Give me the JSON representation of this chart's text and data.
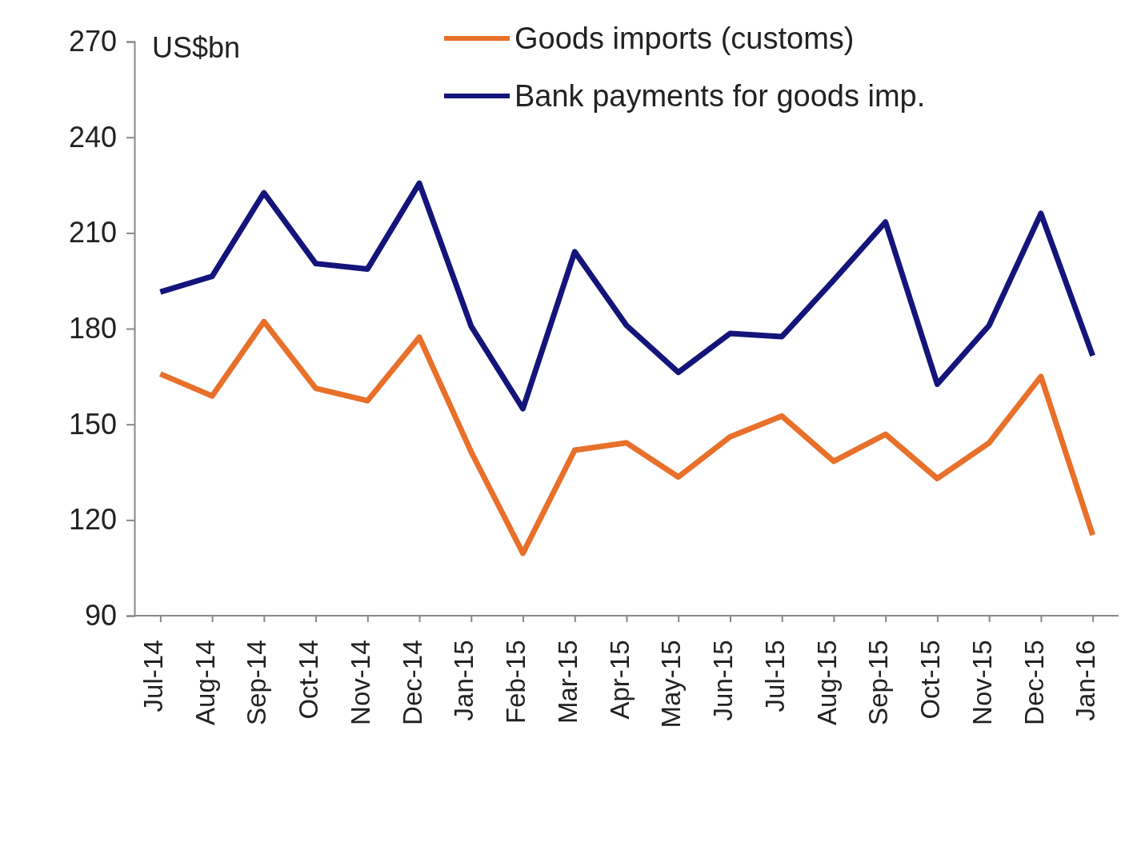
{
  "chart_data": {
    "type": "line",
    "ylabel": "US$bn",
    "categories": [
      "Jul-14",
      "Aug-14",
      "Sep-14",
      "Oct-14",
      "Nov-14",
      "Dec-14",
      "Jan-15",
      "Feb-15",
      "Mar-15",
      "Apr-15",
      "May-15",
      "Jun-15",
      "Jul-15",
      "Aug-15",
      "Sep-15",
      "Oct-15",
      "Nov-15",
      "Dec-15",
      "Jan-16"
    ],
    "series": [
      {
        "name": "Goods imports (customs)",
        "color": "#e8702a",
        "values": [
          165.8,
          158.9,
          182.2,
          161.3,
          157.4,
          177.3,
          141.4,
          109.6,
          141.9,
          144.2,
          133.5,
          146.1,
          152.6,
          138.4,
          146.9,
          133,
          144.2,
          165,
          115.3
        ]
      },
      {
        "name": "Bank payments for goods imp.",
        "color": "#14147a",
        "values": [
          191.5,
          196.4,
          222.6,
          200.4,
          198.7,
          225.6,
          180.8,
          154.9,
          204.1,
          181,
          166.3,
          178.5,
          177.5,
          195.2,
          213.4,
          162.6,
          181,
          216.1,
          171.5
        ]
      }
    ],
    "ylim": [
      90,
      270
    ],
    "yticks": [
      90,
      120,
      150,
      180,
      210,
      240,
      270
    ],
    "grid": false,
    "legend": "top",
    "marker": "none",
    "line_style": "solid"
  }
}
